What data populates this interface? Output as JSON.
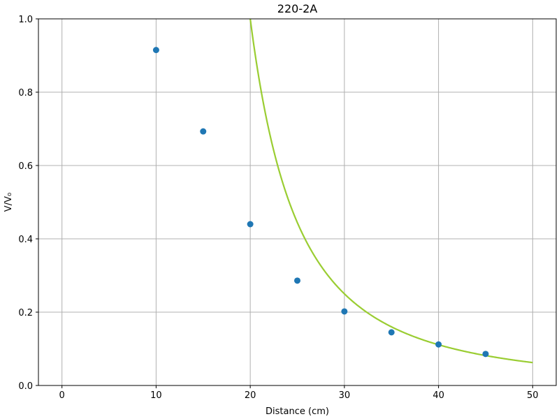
{
  "chart_data": {
    "type": "scatter",
    "title": "220-2A",
    "xlabel": "Distance (cm)",
    "ylabel": "V/V₀",
    "xlim": [
      -2.5,
      52.5
    ],
    "ylim": [
      0,
      1.0
    ],
    "xticks": [
      0,
      10,
      20,
      30,
      40,
      50
    ],
    "yticks": [
      0.0,
      0.2,
      0.4,
      0.6,
      0.8,
      1.0
    ],
    "xtick_labels": [
      "0",
      "10",
      "20",
      "30",
      "40",
      "50"
    ],
    "ytick_labels": [
      "0.0",
      "0.2",
      "0.4",
      "0.6",
      "0.8",
      "1.0"
    ],
    "grid": true,
    "series": [
      {
        "kind": "scatter",
        "color": "#1f77b4",
        "x": [
          10,
          15,
          20,
          25,
          30,
          35,
          40,
          45
        ],
        "y": [
          0.915,
          0.693,
          0.44,
          0.286,
          0.202,
          0.145,
          0.112,
          0.086
        ]
      },
      {
        "kind": "line",
        "color": "#9acd32",
        "curve": "y = (x / 10 - 1)^-2",
        "x_range": [
          11.1,
          50
        ]
      }
    ]
  }
}
